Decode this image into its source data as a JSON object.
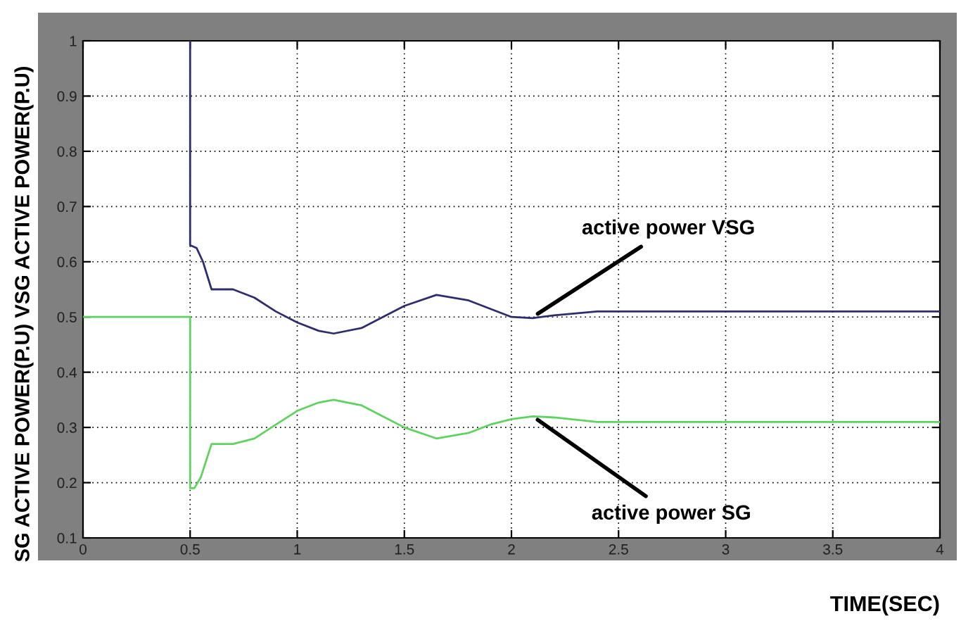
{
  "chart_data": {
    "type": "line",
    "xlabel": "TIME(SEC)",
    "ylabel": "SG ACTIVE POWER(P.U) VSG ACTIVE POWER(P.U)",
    "xlim": [
      0,
      4
    ],
    "ylim": [
      0.1,
      1
    ],
    "xticks": [
      0,
      0.5,
      1,
      1.5,
      2,
      2.5,
      3,
      3.5,
      4
    ],
    "yticks": [
      0.1,
      0.2,
      0.3,
      0.4,
      0.5,
      0.6,
      0.7,
      0.8,
      0.9,
      1
    ],
    "grid": true,
    "line_style": "solid",
    "marker": "none",
    "series": [
      {
        "color": "#2e2e6e",
        "x": [
          0.5,
          0.5,
          0.53,
          0.56,
          0.6,
          0.7,
          0.8,
          0.9,
          1.0,
          1.1,
          1.17,
          1.3,
          1.4,
          1.5,
          1.65,
          1.8,
          1.9,
          2.0,
          2.1,
          2.2,
          2.4,
          4
        ],
        "values": [
          1.0,
          0.63,
          0.625,
          0.6,
          0.55,
          0.55,
          0.535,
          0.51,
          0.49,
          0.475,
          0.47,
          0.48,
          0.5,
          0.52,
          0.54,
          0.53,
          0.515,
          0.5,
          0.498,
          0.503,
          0.51,
          0.51
        ]
      },
      {
        "color": "#5fd35f",
        "x": [
          0,
          0.5,
          0.5,
          0.52,
          0.55,
          0.6,
          0.7,
          0.8,
          0.9,
          1.0,
          1.1,
          1.17,
          1.3,
          1.4,
          1.5,
          1.65,
          1.8,
          1.9,
          2.0,
          2.1,
          2.2,
          2.4,
          4
        ],
        "values": [
          0.5,
          0.5,
          0.19,
          0.19,
          0.21,
          0.27,
          0.27,
          0.28,
          0.305,
          0.33,
          0.345,
          0.35,
          0.34,
          0.32,
          0.3,
          0.28,
          0.29,
          0.305,
          0.315,
          0.32,
          0.318,
          0.31,
          0.31
        ]
      }
    ],
    "annotations": [
      {
        "text": "active power VSG",
        "x": 2.1,
        "y": 0.5
      },
      {
        "text": "active power SG",
        "x": 2.1,
        "y": 0.32
      }
    ]
  }
}
